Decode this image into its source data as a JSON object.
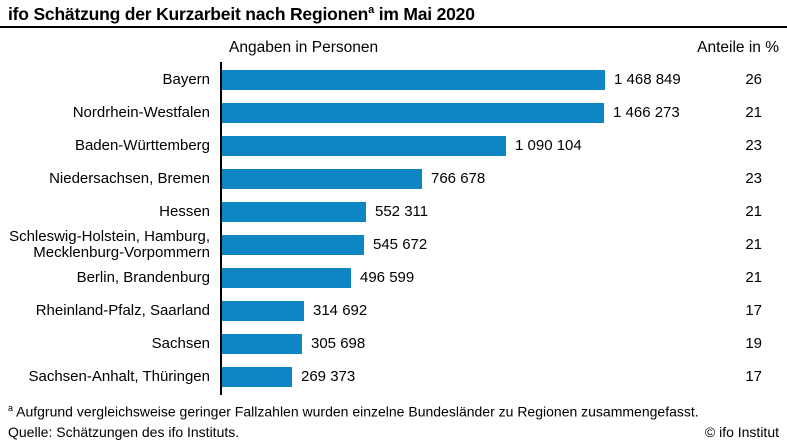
{
  "header": {
    "title_main": "ifo Schätzung der Kurzarbeit nach Regionen",
    "title_sup": "a",
    "title_tail": " im Mai 2020"
  },
  "column_headers": {
    "left": "Angaben in Personen",
    "right": "Anteile in %"
  },
  "footnote": {
    "sup": "a",
    "text": " Aufgrund vergleichsweise geringer Fallzahlen wurden einzelne Bundesländer zu Regionen zusammengefasst.",
    "source": "Quelle: Schätzungen des ifo Instituts.",
    "copyright": "© ifo Institut"
  },
  "colors": {
    "bar_blue": "#0e86c4",
    "axis_black": "#000000",
    "text_black": "#000000"
  },
  "chart_data": {
    "type": "bar",
    "orientation": "horizontal",
    "title": "ifo Schätzung der Kurzarbeit nach Regionen (a) im Mai 2020",
    "xlabel": "Angaben in Personen",
    "secondary_column_label": "Anteile in %",
    "legend": "none",
    "grid": false,
    "xlim": [
      0,
      1468849
    ],
    "categories": [
      "Bayern",
      "Nordrhein-Westfalen",
      "Baden-Württemberg",
      "Niedersachsen, Bremen",
      "Hessen",
      "Schleswig-Holstein, Hamburg, Mecklenburg-Vorpommern",
      "Berlin, Brandenburg",
      "Rheinland-Pfalz, Saarland",
      "Sachsen",
      "Sachsen-Anhalt, Thüringen"
    ],
    "values": [
      1468849,
      1466273,
      1090104,
      766678,
      552311,
      545672,
      496599,
      314692,
      305698,
      269373
    ],
    "value_labels": [
      "1 468 849",
      "1 466 273",
      "1 090 104",
      "766 678",
      "552 311",
      "545 672",
      "496 599",
      "314 692",
      "305 698",
      "269 373"
    ],
    "shares_percent": [
      26,
      21,
      23,
      23,
      21,
      21,
      21,
      17,
      19,
      17
    ]
  }
}
